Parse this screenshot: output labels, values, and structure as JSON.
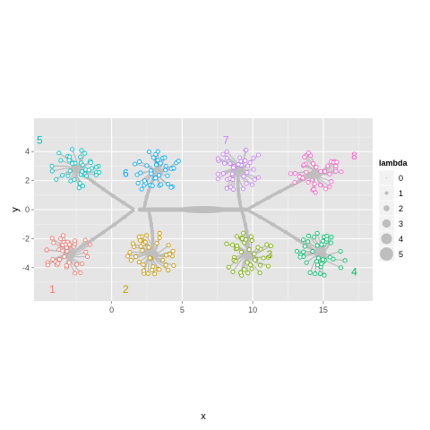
{
  "chart_data": {
    "type": "scatter",
    "xlabel": "x",
    "ylabel": "y",
    "xlim": [
      -5.5,
      18.5
    ],
    "ylim": [
      -6.3,
      6.3
    ],
    "x_ticks": [
      {
        "value": 0,
        "label": "0"
      },
      {
        "value": 5,
        "label": "5"
      },
      {
        "value": 10,
        "label": "10"
      },
      {
        "value": 15,
        "label": "15"
      }
    ],
    "y_ticks": [
      {
        "value": -4,
        "label": "-4"
      },
      {
        "value": -2,
        "label": "-2"
      },
      {
        "value": 0,
        "label": "0"
      },
      {
        "value": 2,
        "label": "2"
      },
      {
        "value": 4,
        "label": "4"
      }
    ],
    "grid": true,
    "legend": {
      "title": "lambda",
      "placement": "right",
      "entries": [
        {
          "label": "0",
          "size": 0
        },
        {
          "label": "1",
          "size": 1
        },
        {
          "label": "2",
          "size": 2
        },
        {
          "label": "3",
          "size": 3
        },
        {
          "label": "4",
          "size": 4
        },
        {
          "label": "5",
          "size": 5
        }
      ]
    },
    "clusters": [
      {
        "label": "1",
        "color": "#F8766D",
        "center": [
          -3.0,
          -3.1
        ],
        "label_pos": [
          -4.2,
          -5.5
        ],
        "points": 40
      },
      {
        "label": "2",
        "color": "#CD9600",
        "center": [
          2.9,
          -3.1
        ],
        "label_pos": [
          1.0,
          -5.5
        ],
        "points": 40
      },
      {
        "label": "3",
        "color": "#7CAE00",
        "center": [
          9.7,
          -3.1
        ],
        "label_pos": [
          11.2,
          -3.1
        ],
        "points": 40
      },
      {
        "label": "4",
        "color": "#00BE67",
        "center": [
          14.8,
          -3.1
        ],
        "label_pos": [
          17.2,
          -4.3
        ],
        "points": 40
      },
      {
        "label": "5",
        "color": "#00BFC4",
        "center": [
          -2.5,
          2.8
        ],
        "label_pos": [
          -5.1,
          4.8
        ],
        "points": 40
      },
      {
        "label": "6",
        "color": "#00A9FF",
        "center": [
          3.2,
          2.6
        ],
        "label_pos": [
          1.0,
          2.5
        ],
        "points": 40
      },
      {
        "label": "7",
        "color": "#C77CFF",
        "center": [
          9.0,
          2.8
        ],
        "label_pos": [
          8.1,
          4.8
        ],
        "points": 40
      },
      {
        "label": "8",
        "color": "#FF61CC",
        "center": [
          14.5,
          2.5
        ],
        "label_pos": [
          17.2,
          3.7
        ],
        "points": 40
      }
    ],
    "trunk": {
      "from": [
        2.0,
        0.0
      ],
      "to": [
        9.5,
        0.0
      ],
      "hub": [
        6.5,
        0.0
      ]
    }
  }
}
